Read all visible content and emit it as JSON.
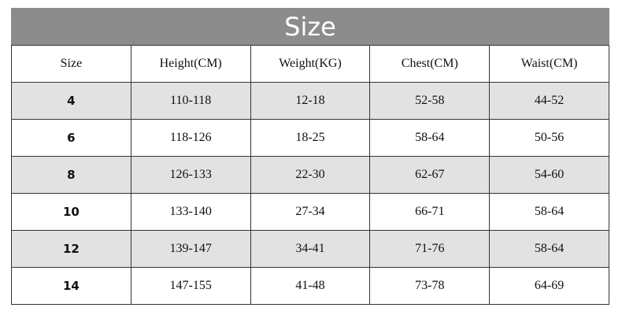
{
  "header": {
    "title": "Size"
  },
  "table": {
    "columns": [
      "Size",
      "Height(CM)",
      "Weight(KG)",
      "Chest(CM)",
      "Waist(CM)"
    ],
    "rows": [
      [
        "4",
        "110-118",
        "12-18",
        "52-58",
        "44-52"
      ],
      [
        "6",
        "118-126",
        "18-25",
        "58-64",
        "50-56"
      ],
      [
        "8",
        "126-133",
        "22-30",
        "62-67",
        "54-60"
      ],
      [
        "10",
        "133-140",
        "27-34",
        "66-71",
        "58-64"
      ],
      [
        "12",
        "139-147",
        "34-41",
        "71-76",
        "58-64"
      ],
      [
        "14",
        "147-155",
        "41-48",
        "73-78",
        "64-69"
      ]
    ]
  }
}
